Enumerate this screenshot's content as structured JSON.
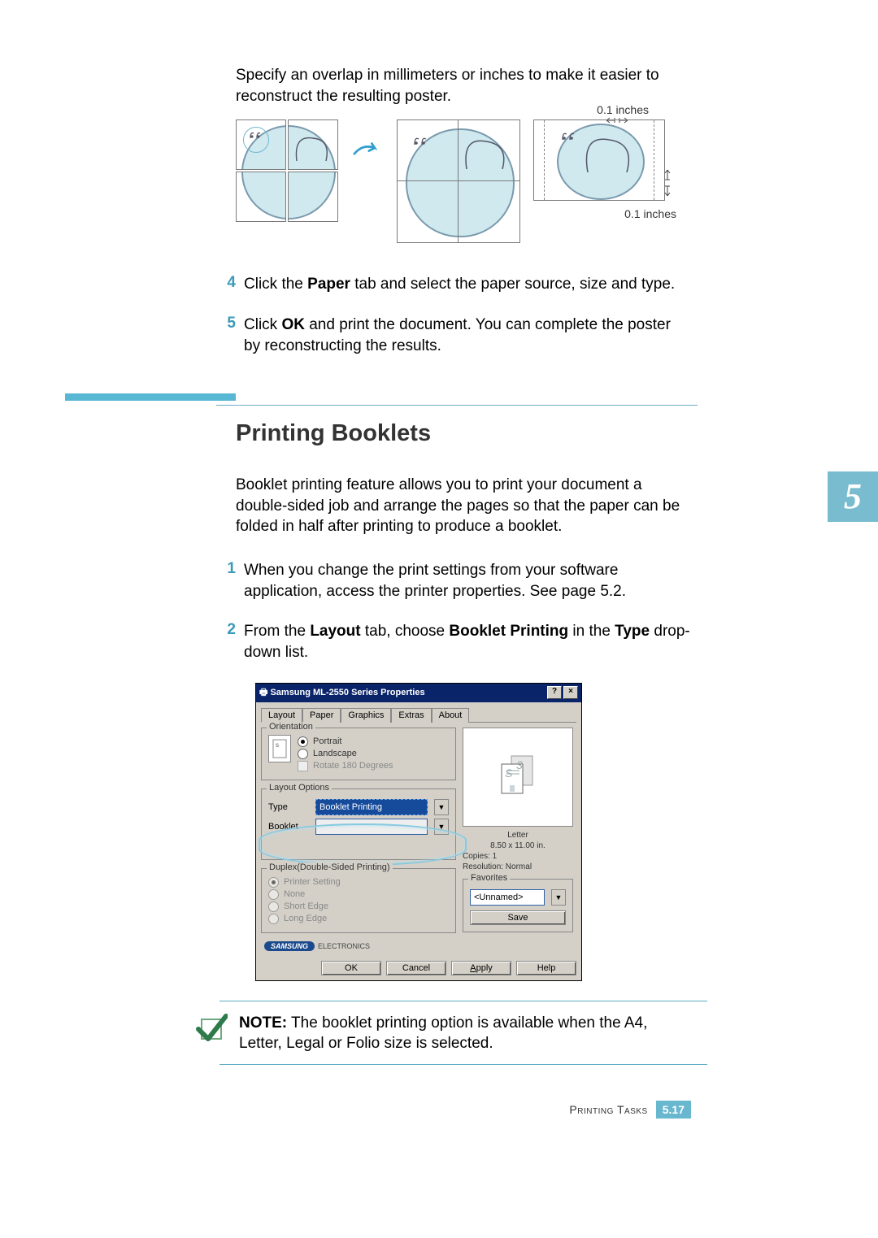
{
  "intro": "Specify an overlap in millimeters or inches to make it easier to reconstruct the resulting poster.",
  "diagram": {
    "overlap_label": "0.1 inches",
    "panel_fill": "#cfe9ef",
    "panel_stroke": "#7a9aad"
  },
  "steps_a": [
    {
      "num": "4",
      "text": "Click the <b>Paper</b> tab and select the paper source, size and type."
    },
    {
      "num": "5",
      "text": "Click <b>OK</b> and print the document. You can complete the poster by reconstructing the results."
    }
  ],
  "divider": {
    "bar_color": "#58b7d3",
    "line_color": "#6faec5"
  },
  "section_title": "Printing Booklets",
  "section_intro": "Booklet printing feature allows you to print your document a double-sided job and arrange the pages so that the paper can be folded in half after printing to produce a booklet.",
  "steps_b": [
    {
      "num": "1",
      "text": "When you change the print settings from your software application, access the printer properties. See page 5.2."
    },
    {
      "num": "2",
      "text": "From the <b>Layout</b> tab, choose <b>Booklet Printing</b> in the <b>Type</b> drop-down list."
    }
  ],
  "dialog": {
    "title": "Samsung ML-2550 Series Properties",
    "tabs": [
      "Layout",
      "Paper",
      "Graphics",
      "Extras",
      "About"
    ],
    "orientation_legend": "Orientation",
    "orientation": {
      "portrait": "Portrait",
      "landscape": "Landscape",
      "rotate": "Rotate 180 Degrees"
    },
    "layout_legend": "Layout Options",
    "type_label": "Type",
    "type_value": "Booklet Printing",
    "booklet_label": "Booklet",
    "duplex_legend": "Duplex(Double-Sided Printing)",
    "duplex": {
      "printer": "Printer Setting",
      "none": "None",
      "short": "Short Edge",
      "long": "Long Edge"
    },
    "preview": {
      "paper": "Letter",
      "size": "8.50 x 11.00 in.",
      "copies": "Copies: 1",
      "resolution": "Resolution: Normal"
    },
    "favorites_legend": "Favorites",
    "favorites_value": "<Unnamed>",
    "save": "Save",
    "brand": "SAMSUNG",
    "brand_sub": "ELECTRONICS",
    "buttons": {
      "ok": "OK",
      "cancel": "Cancel",
      "apply": "Apply",
      "help": "Help"
    }
  },
  "note": {
    "label": "NOTE:",
    "text": "The booklet printing option is available when the A4, Letter, Legal or Folio size is selected."
  },
  "chapter_tab_num": "5",
  "footer": {
    "section": "Printing Tasks",
    "page_major": "5.",
    "page_minor": "17"
  },
  "colors": {
    "accent": "#69b7ce",
    "step_num": "#3a9ab8"
  }
}
